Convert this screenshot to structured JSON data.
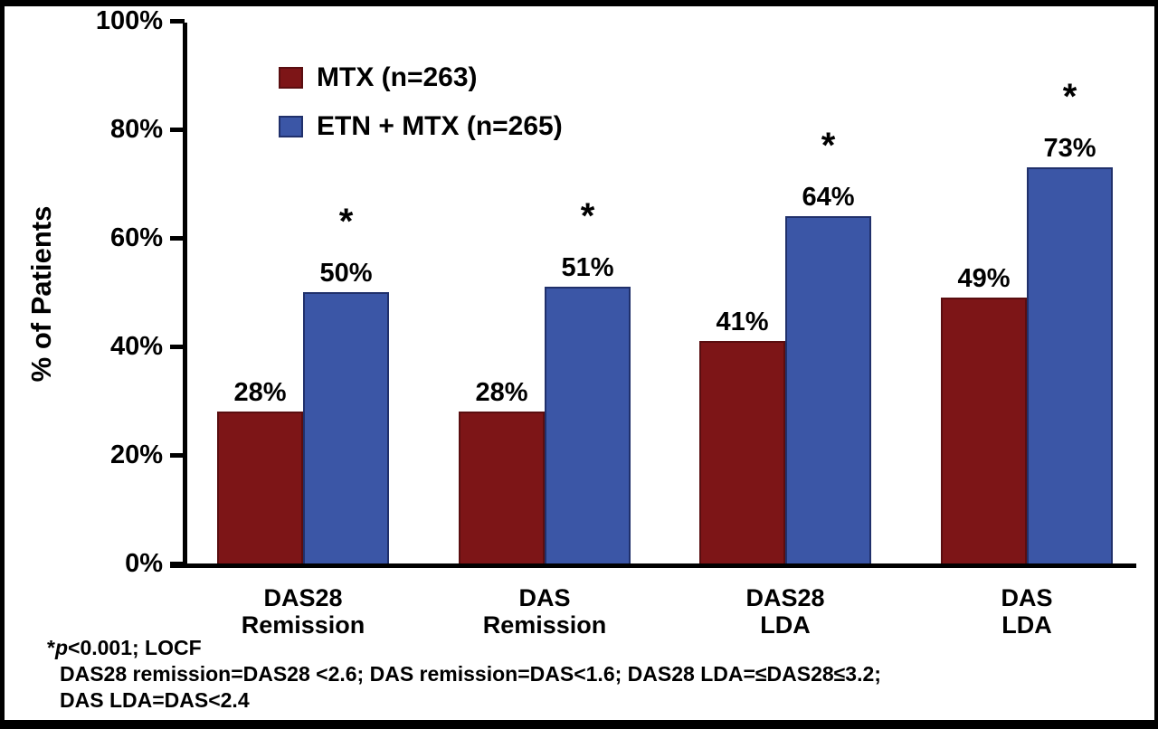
{
  "chart_data": {
    "type": "bar",
    "categories": [
      [
        "DAS28",
        "Remission"
      ],
      [
        "DAS",
        "Remission"
      ],
      [
        "DAS28",
        "LDA"
      ],
      [
        "DAS",
        "LDA"
      ]
    ],
    "series": [
      {
        "name": "MTX (n=263)",
        "color": "#7D1517",
        "border_color": "#5A0E10",
        "values": [
          28,
          28,
          41,
          49
        ],
        "value_labels": [
          "28%",
          "28%",
          "41%",
          "49%"
        ],
        "significant": [
          false,
          false,
          false,
          false
        ]
      },
      {
        "name": "ETN + MTX (n=265)",
        "color": "#3B56A6",
        "border_color": "#20306B",
        "values": [
          50,
          51,
          64,
          73
        ],
        "value_labels": [
          "50%",
          "51%",
          "64%",
          "73%"
        ],
        "significant": [
          true,
          true,
          true,
          true
        ]
      }
    ],
    "title": "",
    "xlabel": "",
    "ylabel": "% of Patients",
    "ylim": [
      0,
      100
    ],
    "yticks": [
      0,
      20,
      40,
      60,
      80,
      100
    ],
    "ytick_labels": [
      "0%",
      "20%",
      "40%",
      "60%",
      "80%",
      "100%"
    ],
    "significance_symbol": "*",
    "grid": false,
    "legend_position": "top-left-inside"
  },
  "footnote": {
    "star": "*",
    "p_italic": "p",
    "line1_rest": "<0.001; LOCF",
    "line2": "DAS28 remission=DAS28 <2.6; DAS remission=DAS<1.6; DAS28 LDA=≤DAS28≤3.2;",
    "line3": "DAS LDA=DAS<2.4"
  }
}
